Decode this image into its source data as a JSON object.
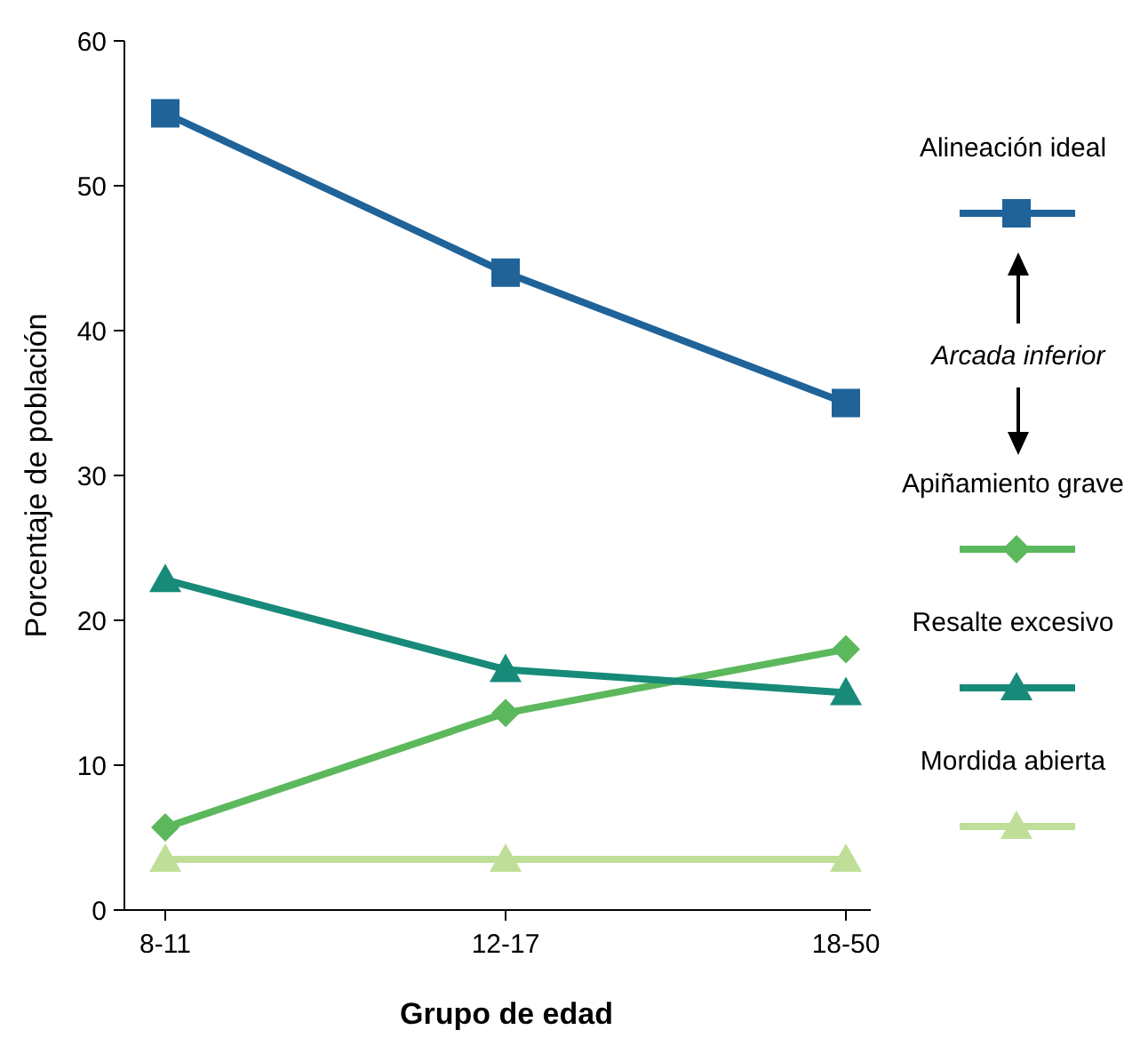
{
  "chart_data": {
    "type": "line",
    "xlabel": "Grupo de edad",
    "ylabel": "Porcentaje de población",
    "categories": [
      "8-11",
      "12-17",
      "18-50"
    ],
    "series": [
      {
        "name": "Alineación ideal",
        "color": "#1f6399",
        "marker": "square",
        "values": [
          55,
          44,
          35
        ]
      },
      {
        "name": "Apiñamiento grave",
        "color": "#5cb85c",
        "marker": "diamond",
        "values": [
          5.7,
          13.6,
          18
        ]
      },
      {
        "name": "Resalte excesivo",
        "color": "#178a79",
        "marker": "triangle",
        "values": [
          22.8,
          16.6,
          15
        ]
      },
      {
        "name": "Mordida abierta",
        "color": "#bfdf98",
        "marker": "triangle",
        "values": [
          3.5,
          3.5,
          3.5
        ]
      }
    ],
    "ylim": [
      0,
      60
    ],
    "yticks": [
      0,
      10,
      20,
      30,
      40,
      50,
      60
    ],
    "grid": false,
    "legend": "right",
    "annotations": [
      "Arcada inferior"
    ]
  }
}
